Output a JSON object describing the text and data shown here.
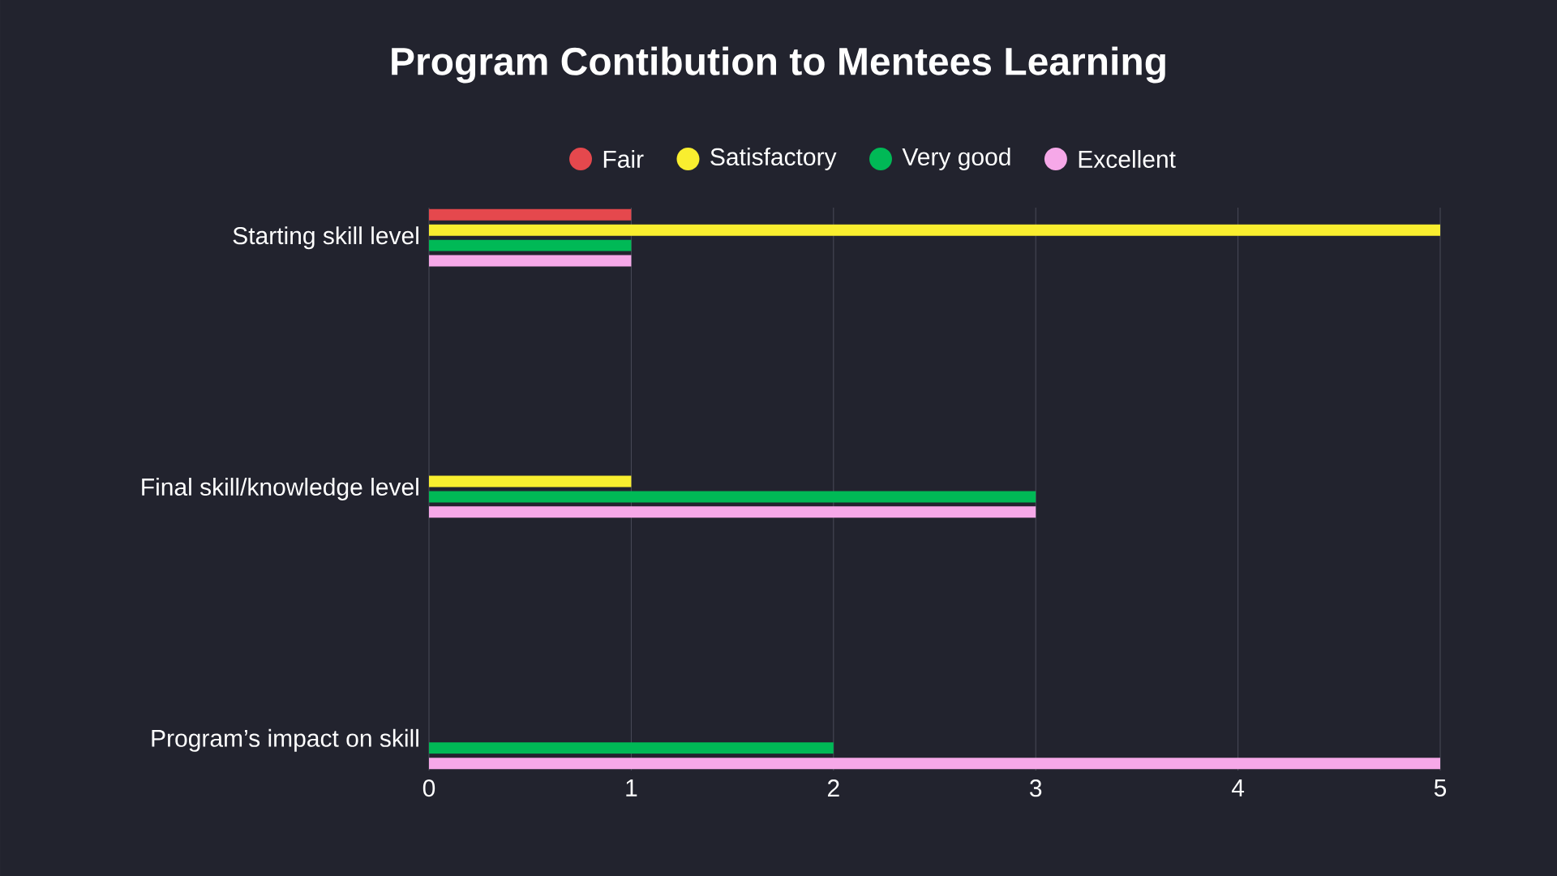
{
  "chart_data": {
    "type": "bar",
    "orientation": "horizontal",
    "title": "Program Contibution to Mentees Learning",
    "categories": [
      "Starting skill level",
      "Final skill/knowledge level",
      "Program’s impact on skill"
    ],
    "series": [
      {
        "name": "Fair",
        "color": "#e5484d",
        "values": [
          1,
          0,
          0
        ]
      },
      {
        "name": "Satisfactory",
        "color": "#f9ee2f",
        "values": [
          5,
          1,
          0
        ]
      },
      {
        "name": "Very good",
        "color": "#00b956",
        "values": [
          1,
          3,
          2
        ]
      },
      {
        "name": "Excellent",
        "color": "#f6a8e8",
        "values": [
          1,
          3,
          5
        ]
      }
    ],
    "xlim": [
      0,
      5
    ],
    "xticks": [
      0,
      1,
      2,
      3,
      4,
      5
    ],
    "grid": "x",
    "legend": "top"
  }
}
